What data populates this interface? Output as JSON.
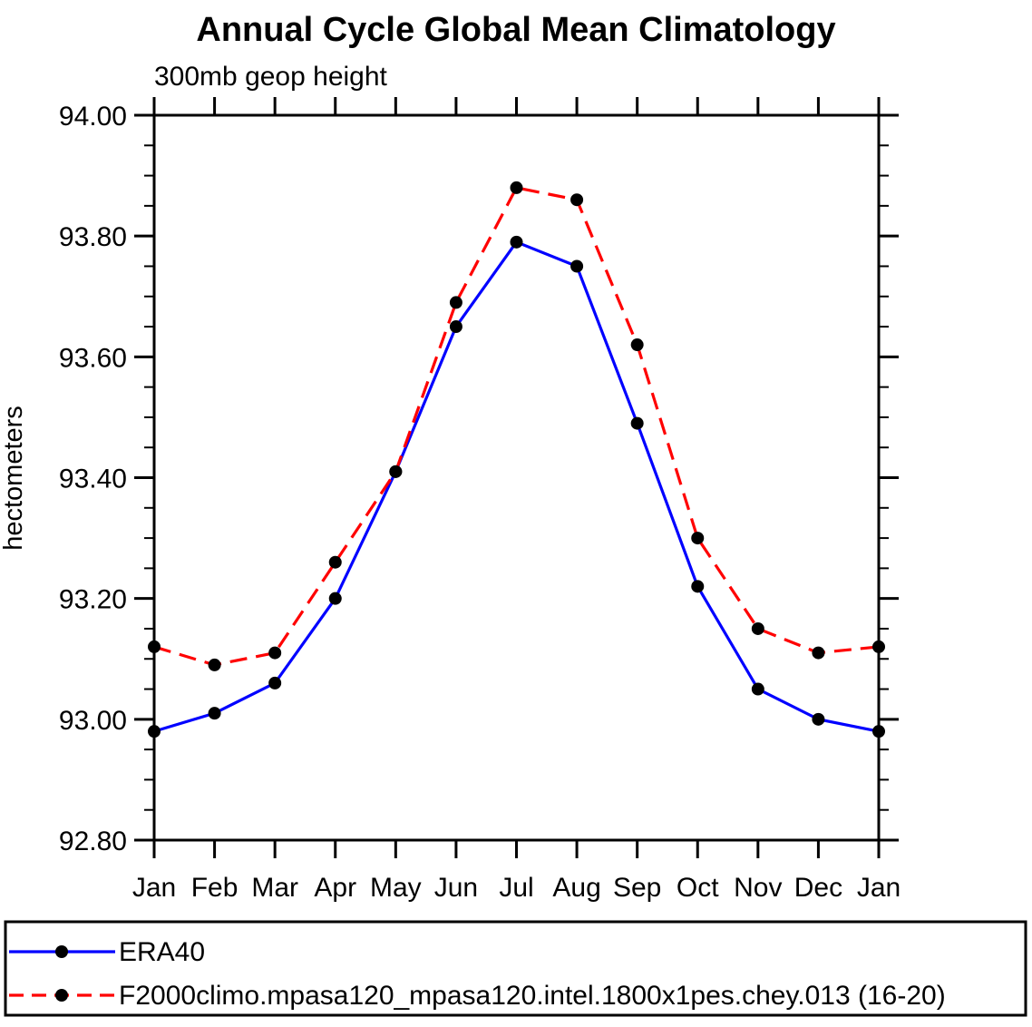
{
  "chart_data": {
    "type": "line",
    "title": "Annual Cycle Global Mean Climatology",
    "subtitle": "300mb geop height",
    "xlabel": "",
    "ylabel": "hectometers",
    "categories": [
      "Jan",
      "Feb",
      "Mar",
      "Apr",
      "May",
      "Jun",
      "Jul",
      "Aug",
      "Sep",
      "Oct",
      "Nov",
      "Dec",
      "Jan"
    ],
    "ylim": [
      92.8,
      94.0
    ],
    "ytick_major_interval": 0.2,
    "ytick_minor_interval": 0.05,
    "ytick_labels": [
      "92.80",
      "93.00",
      "93.20",
      "93.40",
      "93.60",
      "93.80",
      "94.00"
    ],
    "grid": false,
    "axis_color": "#000000",
    "marker_color": "#000000",
    "legend_position": "bottom",
    "series": [
      {
        "name": "ERA40",
        "color": "#0000ff",
        "line_style": "solid",
        "marker": "filled-circle",
        "values": [
          92.98,
          93.01,
          93.06,
          93.2,
          93.41,
          93.65,
          93.79,
          93.75,
          93.49,
          93.22,
          93.05,
          93.0,
          92.98
        ]
      },
      {
        "name": "F2000climo.mpasa120_mpasa120.intel.1800x1pes.chey.013 (16-20)",
        "color": "#ff0000",
        "line_style": "dashed",
        "marker": "filled-circle",
        "values": [
          93.12,
          93.09,
          93.11,
          93.26,
          93.41,
          93.69,
          93.88,
          93.86,
          93.62,
          93.3,
          93.15,
          93.11,
          93.12
        ]
      }
    ]
  }
}
